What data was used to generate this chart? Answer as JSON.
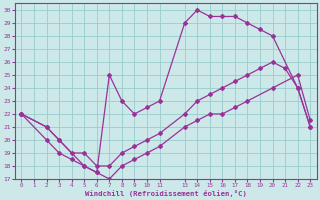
{
  "xlabel": "Windchill (Refroidissement éolien,°C)",
  "background_color": "#cce8e8",
  "line_color": "#993399",
  "grid_color": "#99cccc",
  "xlim": [
    -0.5,
    23.5
  ],
  "ylim": [
    17,
    30.5
  ],
  "xticks": [
    0,
    1,
    2,
    3,
    4,
    5,
    6,
    7,
    8,
    9,
    10,
    11,
    13,
    14,
    15,
    16,
    17,
    18,
    19,
    20,
    21,
    22,
    23
  ],
  "xtick_labels": [
    "0",
    "1",
    "2",
    "3",
    "4",
    "5",
    "6",
    "7",
    "8",
    "9",
    "10",
    "11",
    "13",
    "14",
    "15",
    "16",
    "17",
    "18",
    "19",
    "20",
    "21",
    "22",
    "23"
  ],
  "yticks": [
    17,
    18,
    19,
    20,
    21,
    22,
    23,
    24,
    25,
    26,
    27,
    28,
    29,
    30
  ],
  "line1_x": [
    0,
    2,
    3,
    4,
    5,
    6,
    7,
    8,
    9,
    10,
    11,
    13,
    14,
    15,
    16,
    17,
    18,
    19,
    20,
    21,
    22,
    23
  ],
  "line1_y": [
    22,
    21,
    20,
    19,
    19,
    18,
    18,
    19,
    19.5,
    20,
    20.5,
    22,
    23,
    23.5,
    24,
    24.5,
    25,
    25.5,
    26,
    25.5,
    24,
    21
  ],
  "line2_x": [
    0,
    2,
    3,
    4,
    5,
    6,
    7,
    8,
    9,
    10,
    11,
    13,
    14,
    15,
    16,
    17,
    18,
    20,
    22,
    23
  ],
  "line2_y": [
    22,
    20,
    19,
    18.5,
    18,
    17.5,
    17,
    18,
    18.5,
    19,
    19.5,
    21,
    21.5,
    22,
    22,
    22.5,
    23,
    24,
    25,
    21.5
  ],
  "line3_x": [
    0,
    2,
    3,
    5,
    6,
    7,
    8,
    9,
    10,
    11,
    13,
    14,
    15,
    16,
    17,
    18,
    19,
    20,
    22,
    23
  ],
  "line3_y": [
    22,
    21,
    20,
    18,
    17.5,
    25,
    23,
    22,
    22.5,
    23,
    29,
    30,
    29.5,
    29.5,
    29.5,
    29,
    28.5,
    28,
    24,
    21
  ]
}
